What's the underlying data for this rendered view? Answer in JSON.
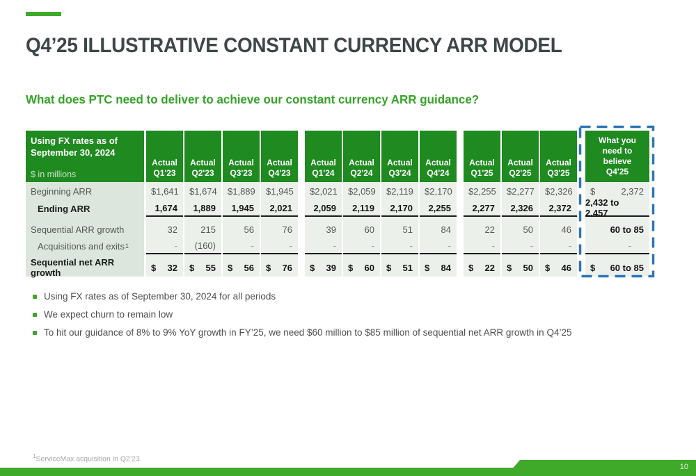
{
  "slide": {
    "title": "Q4’25 ILLUSTRATIVE CONSTANT CURRENCY ARR MODEL",
    "subtitle": "What does PTC need to deliver to achieve our constant currency ARR guidance?",
    "footnote_sup": "1",
    "footnote": "ServiceMax acquisition in Q2’23.",
    "page_number": "10"
  },
  "colors": {
    "brand_green": "#3FA929",
    "table_header_green": "#1F8A1F",
    "subtitle_green": "#35A327",
    "highlight_blue": "#2E75B6",
    "label_column_bg": "#DCE6DC",
    "value_cell_bg": "#EBF0EA"
  },
  "table": {
    "corner": {
      "title_lines": [
        "Using FX rates as of",
        "September 30, 2024"
      ],
      "unit": "$ in millions"
    },
    "actual_label": "Actual",
    "groups": [
      [
        "Q1'23",
        "Q2'23",
        "Q3'23",
        "Q4'23"
      ],
      [
        "Q1'24",
        "Q2'24",
        "Q3'24",
        "Q4'24"
      ],
      [
        "Q1'25",
        "Q2'25",
        "Q3'25"
      ]
    ],
    "believe_header_lines": [
      "What you",
      "need to",
      "believe",
      "Q4'25"
    ],
    "rows": [
      {
        "label": "Beginning ARR",
        "bold": false,
        "indent": false,
        "dollar": true,
        "underline": false,
        "values": [
          "1,641",
          "1,674",
          "1,889",
          "1,945",
          "2,021",
          "2,059",
          "2,119",
          "2,170",
          "2,255",
          "2,277",
          "2,326"
        ],
        "believe": "2,372",
        "believe_dollar": true,
        "believe_bold": false
      },
      {
        "label": "Ending ARR",
        "bold": true,
        "indent": true,
        "dollar": false,
        "underline": true,
        "values": [
          "1,674",
          "1,889",
          "1,945",
          "2,021",
          "2,059",
          "2,119",
          "2,170",
          "2,255",
          "2,277",
          "2,326",
          "2,372"
        ],
        "believe": "2,432 to 2,457",
        "believe_dollar": false,
        "believe_bold": true
      },
      {
        "label": "Sequential ARR growth",
        "bold": false,
        "indent": false,
        "dollar": false,
        "underline": false,
        "values": [
          "32",
          "215",
          "56",
          "76",
          "39",
          "60",
          "51",
          "84",
          "22",
          "50",
          "46"
        ],
        "believe": "60 to 85",
        "believe_dollar": false,
        "believe_bold": true
      },
      {
        "label": "Acquisitions and exits",
        "label_sup": "1",
        "bold": false,
        "indent": true,
        "dollar": false,
        "underline": true,
        "values": [
          "-",
          "(160)",
          "-",
          "-",
          "-",
          "-",
          "-",
          "-",
          "-",
          "-",
          "-"
        ],
        "believe": "-",
        "believe_dollar": false,
        "believe_bold": false
      },
      {
        "label": "Sequential net ARR growth",
        "bold": true,
        "indent": false,
        "dollar": true,
        "underline": false,
        "values": [
          "32",
          "55",
          "56",
          "76",
          "39",
          "60",
          "51",
          "84",
          "22",
          "50",
          "46"
        ],
        "believe": "60 to 85",
        "believe_dollar": true,
        "believe_bold": true
      }
    ]
  },
  "bullets": [
    "Using FX rates as of September 30, 2024 for all periods",
    "We expect churn to remain low",
    "To hit our guidance of 8% to 9% YoY growth in FY’25, we need $60 million to $85 million of sequential net ARR growth in Q4’25"
  ]
}
